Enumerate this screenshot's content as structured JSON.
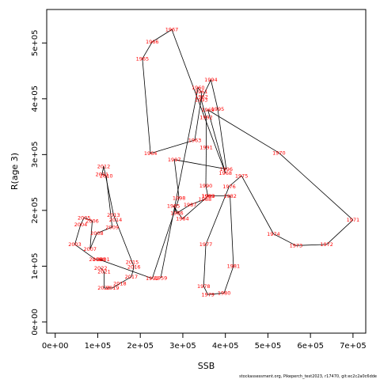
{
  "chart_data": {
    "type": "line",
    "xlabel": "SSB",
    "ylabel": "R(age 3)",
    "xlim": [
      -20000,
      730000
    ],
    "ylim": [
      -20000,
      560000
    ],
    "x_ticks": [
      0,
      100000,
      200000,
      300000,
      400000,
      500000,
      600000,
      700000
    ],
    "x_tick_labels": [
      "0e+00",
      "1e+05",
      "2e+05",
      "3e+05",
      "4e+05",
      "5e+05",
      "6e+05",
      "7e+05"
    ],
    "y_ticks": [
      0,
      100000,
      200000,
      300000,
      400000,
      500000
    ],
    "y_tick_labels": [
      "0e+00",
      "1e+05",
      "2e+05",
      "3e+05",
      "4e+05",
      "5e+05"
    ],
    "series": [
      {
        "points": [
          {
            "label": "1959",
            "x": 248000,
            "y": 79000
          },
          {
            "label": "1960",
            "x": 336000,
            "y": 420000
          },
          {
            "label": "1961",
            "x": 343000,
            "y": 413000
          },
          {
            "label": "1962",
            "x": 344000,
            "y": 404000
          },
          {
            "label": "1963",
            "x": 328000,
            "y": 326000
          },
          {
            "label": "1964",
            "x": 224000,
            "y": 302000
          },
          {
            "label": "1965",
            "x": 205000,
            "y": 472000
          },
          {
            "label": "1966",
            "x": 228000,
            "y": 502000
          },
          {
            "label": "1967",
            "x": 274000,
            "y": 524000
          },
          {
            "label": "1968",
            "x": 400000,
            "y": 267000
          },
          {
            "label": "1969",
            "x": 359000,
            "y": 380000
          },
          {
            "label": "1970",
            "x": 526000,
            "y": 303000
          },
          {
            "label": "1971",
            "x": 700000,
            "y": 183000
          },
          {
            "label": "1972",
            "x": 638000,
            "y": 139000
          },
          {
            "label": "1973",
            "x": 566000,
            "y": 137000
          },
          {
            "label": "1974",
            "x": 513000,
            "y": 158000
          },
          {
            "label": "1975",
            "x": 438000,
            "y": 262000
          },
          {
            "label": "1976",
            "x": 409000,
            "y": 243000
          },
          {
            "label": "1977",
            "x": 354000,
            "y": 139000
          },
          {
            "label": "1978",
            "x": 349000,
            "y": 64000
          },
          {
            "label": "1979",
            "x": 359000,
            "y": 49000
          },
          {
            "label": "1980",
            "x": 397000,
            "y": 52000
          },
          {
            "label": "1981",
            "x": 419000,
            "y": 100000
          },
          {
            "label": "1982",
            "x": 411000,
            "y": 226000
          },
          {
            "label": "1983",
            "x": 360000,
            "y": 226000
          },
          {
            "label": "1984",
            "x": 299000,
            "y": 185000
          },
          {
            "label": "1985",
            "x": 278000,
            "y": 208000
          },
          {
            "label": "1986",
            "x": 286000,
            "y": 195000
          },
          {
            "label": "1987",
            "x": 317000,
            "y": 210000
          },
          {
            "label": "1988",
            "x": 352000,
            "y": 220000
          },
          {
            "label": "1989",
            "x": 359000,
            "y": 226000
          },
          {
            "label": "1990",
            "x": 354000,
            "y": 244000
          },
          {
            "label": "1991",
            "x": 355000,
            "y": 313000
          },
          {
            "label": "1992",
            "x": 355000,
            "y": 367000
          },
          {
            "label": "1993",
            "x": 343000,
            "y": 398000
          },
          {
            "label": "1994",
            "x": 366000,
            "y": 434000
          },
          {
            "label": "1995",
            "x": 382000,
            "y": 382000
          },
          {
            "label": "1996",
            "x": 402000,
            "y": 274000
          },
          {
            "label": "1997",
            "x": 280000,
            "y": 291000
          },
          {
            "label": "1998",
            "x": 291000,
            "y": 222000
          },
          {
            "label": "1999",
            "x": 228000,
            "y": 78000
          },
          {
            "label": "2000",
            "x": 103000,
            "y": 112000
          },
          {
            "label": "2001",
            "x": 113000,
            "y": 112000
          },
          {
            "label": "2002",
            "x": 95000,
            "y": 112000
          },
          {
            "label": "2003",
            "x": 46000,
            "y": 139000
          },
          {
            "label": "2004",
            "x": 60000,
            "y": 175000
          },
          {
            "label": "2005",
            "x": 68000,
            "y": 187000
          },
          {
            "label": "2006",
            "x": 87000,
            "y": 181000
          },
          {
            "label": "2007",
            "x": 82000,
            "y": 131000
          },
          {
            "label": "2008",
            "x": 98000,
            "y": 159000
          },
          {
            "label": "2009",
            "x": 134000,
            "y": 170000
          },
          {
            "label": "2010",
            "x": 120000,
            "y": 262000
          },
          {
            "label": "2011",
            "x": 110000,
            "y": 265000
          },
          {
            "label": "2012",
            "x": 114000,
            "y": 279000
          },
          {
            "label": "2013",
            "x": 137000,
            "y": 192000
          },
          {
            "label": "2014",
            "x": 142000,
            "y": 183000
          },
          {
            "label": "2015",
            "x": 181000,
            "y": 107000
          },
          {
            "label": "2016",
            "x": 185000,
            "y": 99000
          },
          {
            "label": "2017",
            "x": 179000,
            "y": 81000
          },
          {
            "label": "2018",
            "x": 152000,
            "y": 69000
          },
          {
            "label": "2019",
            "x": 135000,
            "y": 61000
          },
          {
            "label": "2020",
            "x": 115000,
            "y": 61000
          },
          {
            "label": "2021",
            "x": 115000,
            "y": 90000
          },
          {
            "label": "2022",
            "x": 107000,
            "y": 97000
          }
        ]
      }
    ],
    "colors": {
      "line": "#000000",
      "labels": "#ff0000",
      "axis": "#000000"
    },
    "footer_text": "stockassessment.org, Pikeperch_test2023, r17470, git:ec2c2a0c6dde"
  }
}
